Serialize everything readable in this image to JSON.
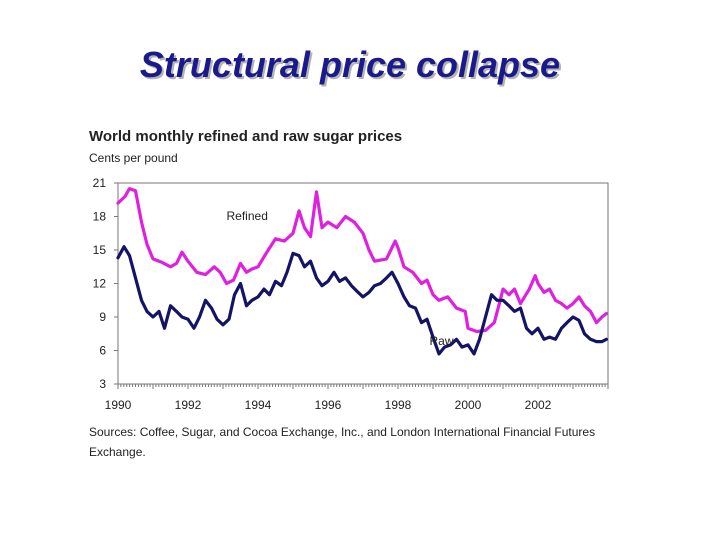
{
  "slide": {
    "title": "Structural price collapse"
  },
  "chart_data": {
    "type": "line",
    "title": "World monthly refined and raw sugar prices",
    "ylabel": "Cents per pound",
    "xlabel": "",
    "xlim": [
      1990,
      2004
    ],
    "ylim": [
      3,
      21
    ],
    "y_ticks": [
      21,
      18,
      15,
      12,
      9,
      6,
      3
    ],
    "x_ticks": [
      1990,
      1992,
      1994,
      1996,
      1998,
      2000,
      2002
    ],
    "grid": false,
    "source": "Sources: Coffee, Sugar, and Cocoa Exchange, Inc., and London International Financial Futures Exchange.",
    "series": [
      {
        "name": "Refined",
        "color": "#e020e0",
        "points": [
          [
            1990.0,
            19.2
          ],
          [
            1990.2,
            19.8
          ],
          [
            1990.33,
            20.5
          ],
          [
            1990.5,
            20.3
          ],
          [
            1990.67,
            17.5
          ],
          [
            1990.83,
            15.5
          ],
          [
            1991.0,
            14.2
          ],
          [
            1991.25,
            13.9
          ],
          [
            1991.5,
            13.5
          ],
          [
            1991.67,
            13.8
          ],
          [
            1991.83,
            14.8
          ],
          [
            1992.0,
            14.0
          ],
          [
            1992.25,
            13.0
          ],
          [
            1992.5,
            12.8
          ],
          [
            1992.75,
            13.5
          ],
          [
            1992.92,
            13.0
          ],
          [
            1993.1,
            12.0
          ],
          [
            1993.3,
            12.3
          ],
          [
            1993.5,
            13.8
          ],
          [
            1993.67,
            13.0
          ],
          [
            1993.83,
            13.3
          ],
          [
            1994.0,
            13.5
          ],
          [
            1994.25,
            14.8
          ],
          [
            1994.5,
            16.0
          ],
          [
            1994.75,
            15.8
          ],
          [
            1995.0,
            16.5
          ],
          [
            1995.17,
            18.5
          ],
          [
            1995.33,
            17.0
          ],
          [
            1995.5,
            16.2
          ],
          [
            1995.67,
            20.2
          ],
          [
            1995.83,
            17.0
          ],
          [
            1996.0,
            17.5
          ],
          [
            1996.25,
            17.0
          ],
          [
            1996.5,
            18.0
          ],
          [
            1996.75,
            17.5
          ],
          [
            1997.0,
            16.5
          ],
          [
            1997.17,
            15.0
          ],
          [
            1997.33,
            14.0
          ],
          [
            1997.67,
            14.2
          ],
          [
            1997.92,
            15.8
          ],
          [
            1998.0,
            15.2
          ],
          [
            1998.17,
            13.5
          ],
          [
            1998.42,
            13.0
          ],
          [
            1998.67,
            12.0
          ],
          [
            1998.83,
            12.3
          ],
          [
            1999.0,
            11.0
          ],
          [
            1999.17,
            10.5
          ],
          [
            1999.42,
            10.8
          ],
          [
            1999.67,
            9.8
          ],
          [
            1999.92,
            9.5
          ],
          [
            2000.0,
            8.0
          ],
          [
            2000.25,
            7.7
          ],
          [
            2000.5,
            7.8
          ],
          [
            2000.75,
            8.5
          ],
          [
            2000.92,
            10.5
          ],
          [
            2001.0,
            11.5
          ],
          [
            2001.17,
            11.0
          ],
          [
            2001.33,
            11.5
          ],
          [
            2001.5,
            10.2
          ],
          [
            2001.75,
            11.5
          ],
          [
            2001.92,
            12.7
          ],
          [
            2002.0,
            12.0
          ],
          [
            2002.17,
            11.2
          ],
          [
            2002.33,
            11.5
          ],
          [
            2002.5,
            10.5
          ],
          [
            2002.67,
            10.2
          ],
          [
            2002.83,
            9.8
          ],
          [
            2003.0,
            10.2
          ],
          [
            2003.17,
            10.8
          ],
          [
            2003.33,
            10.0
          ],
          [
            2003.5,
            9.5
          ],
          [
            2003.67,
            8.5
          ],
          [
            2003.83,
            9.0
          ],
          [
            2003.95,
            9.3
          ]
        ]
      },
      {
        "name": "Raw",
        "color": "#141466",
        "points": [
          [
            1990.0,
            14.3
          ],
          [
            1990.17,
            15.3
          ],
          [
            1990.33,
            14.5
          ],
          [
            1990.5,
            12.5
          ],
          [
            1990.67,
            10.5
          ],
          [
            1990.83,
            9.5
          ],
          [
            1991.0,
            9.0
          ],
          [
            1991.17,
            9.5
          ],
          [
            1991.33,
            8.0
          ],
          [
            1991.5,
            10.0
          ],
          [
            1991.67,
            9.5
          ],
          [
            1991.83,
            9.0
          ],
          [
            1992.0,
            8.8
          ],
          [
            1992.17,
            8.0
          ],
          [
            1992.33,
            9.0
          ],
          [
            1992.5,
            10.5
          ],
          [
            1992.67,
            9.8
          ],
          [
            1992.83,
            8.8
          ],
          [
            1993.0,
            8.3
          ],
          [
            1993.17,
            8.8
          ],
          [
            1993.33,
            11.0
          ],
          [
            1993.5,
            12.0
          ],
          [
            1993.67,
            10.0
          ],
          [
            1993.83,
            10.5
          ],
          [
            1994.0,
            10.8
          ],
          [
            1994.17,
            11.5
          ],
          [
            1994.33,
            11.0
          ],
          [
            1994.5,
            12.2
          ],
          [
            1994.67,
            11.8
          ],
          [
            1994.83,
            13.0
          ],
          [
            1995.0,
            14.7
          ],
          [
            1995.17,
            14.5
          ],
          [
            1995.33,
            13.5
          ],
          [
            1995.5,
            14.0
          ],
          [
            1995.67,
            12.5
          ],
          [
            1995.83,
            11.8
          ],
          [
            1996.0,
            12.2
          ],
          [
            1996.17,
            13.0
          ],
          [
            1996.33,
            12.2
          ],
          [
            1996.5,
            12.5
          ],
          [
            1996.67,
            11.8
          ],
          [
            1996.83,
            11.3
          ],
          [
            1997.0,
            10.8
          ],
          [
            1997.17,
            11.2
          ],
          [
            1997.33,
            11.8
          ],
          [
            1997.5,
            12.0
          ],
          [
            1997.67,
            12.5
          ],
          [
            1997.83,
            13.0
          ],
          [
            1998.0,
            12.0
          ],
          [
            1998.17,
            10.8
          ],
          [
            1998.33,
            10.0
          ],
          [
            1998.5,
            9.8
          ],
          [
            1998.67,
            8.5
          ],
          [
            1998.83,
            8.8
          ],
          [
            1999.0,
            7.2
          ],
          [
            1999.17,
            5.7
          ],
          [
            1999.33,
            6.3
          ],
          [
            1999.5,
            6.5
          ],
          [
            1999.67,
            7.0
          ],
          [
            1999.83,
            6.3
          ],
          [
            2000.0,
            6.5
          ],
          [
            2000.17,
            5.7
          ],
          [
            2000.33,
            7.0
          ],
          [
            2000.5,
            9.0
          ],
          [
            2000.67,
            11.0
          ],
          [
            2000.83,
            10.5
          ],
          [
            2001.0,
            10.5
          ],
          [
            2001.17,
            10.0
          ],
          [
            2001.33,
            9.5
          ],
          [
            2001.5,
            9.8
          ],
          [
            2001.67,
            8.0
          ],
          [
            2001.83,
            7.5
          ],
          [
            2002.0,
            8.0
          ],
          [
            2002.17,
            7.0
          ],
          [
            2002.33,
            7.2
          ],
          [
            2002.5,
            7.0
          ],
          [
            2002.67,
            8.0
          ],
          [
            2002.83,
            8.5
          ],
          [
            2003.0,
            9.0
          ],
          [
            2003.17,
            8.7
          ],
          [
            2003.33,
            7.5
          ],
          [
            2003.5,
            7.0
          ],
          [
            2003.67,
            6.8
          ],
          [
            2003.83,
            6.8
          ],
          [
            2003.95,
            7.0
          ]
        ]
      }
    ]
  }
}
